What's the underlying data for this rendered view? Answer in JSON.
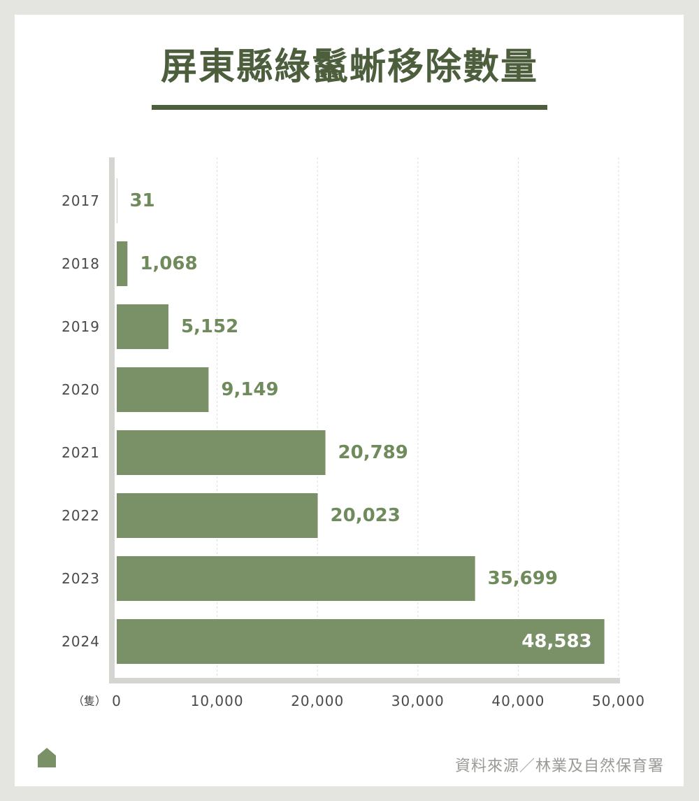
{
  "title": "屏東縣綠鬣蜥移除數量",
  "source": "資料來源／林業及自然保育署",
  "colors": {
    "bar": "#7a9067",
    "label": "#6f8a5b",
    "title": "#4d5e3c",
    "axis": "#d4d4d1",
    "grid": "#dedede",
    "tick_text": "#4a4a4a",
    "background": "#e4e4e1"
  },
  "icons": {
    "logo": "house-icon"
  },
  "chart_data": {
    "type": "bar",
    "orientation": "horizontal",
    "categories": [
      "2017",
      "2018",
      "2019",
      "2020",
      "2021",
      "2022",
      "2023",
      "2024"
    ],
    "values": [
      31,
      1068,
      5152,
      9149,
      20789,
      20023,
      35699,
      48583
    ],
    "value_labels": [
      "31",
      "1,068",
      "5,152",
      "9,149",
      "20,789",
      "20,023",
      "35,699",
      "48,583"
    ],
    "xlim": [
      0,
      50000
    ],
    "xticks": [
      0,
      10000,
      20000,
      30000,
      40000,
      50000
    ],
    "xtick_labels": [
      "0",
      "10,000",
      "20,000",
      "30,000",
      "40,000",
      "50,000"
    ],
    "unit_label": "（隻）",
    "title": "屏東縣綠鬣蜥移除數量",
    "grid": "vertical dashed",
    "legend": "none"
  }
}
